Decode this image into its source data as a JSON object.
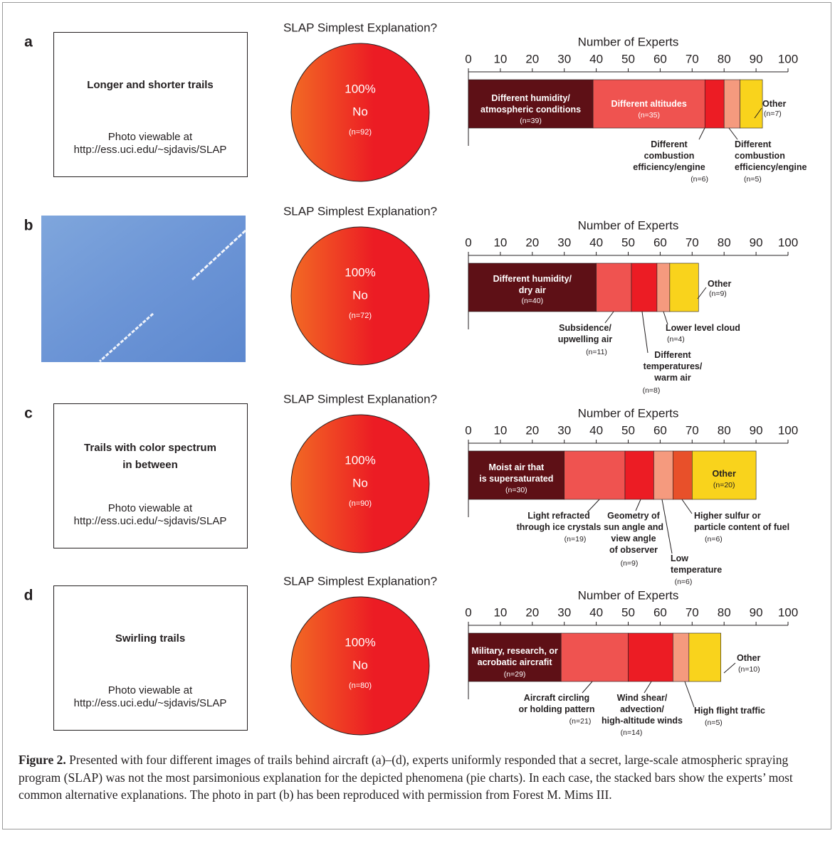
{
  "panels": [
    {
      "label": "a",
      "box": {
        "title": "Longer and shorter trails",
        "note": "Photo viewable at\nhttp://ess.uci.edu/~sjdavis/SLAP"
      }
    },
    {
      "label": "b",
      "photo": true
    },
    {
      "label": "c",
      "box": {
        "title": "Trails with color spectrum\nin between",
        "note": "Photo viewable at\nhttp://ess.uci.edu/~sjdavis/SLAP"
      }
    },
    {
      "label": "d",
      "box": {
        "title": "Swirling trails",
        "note": "Photo viewable at\nhttp://ess.uci.edu/~sjdavis/SLAP"
      }
    }
  ],
  "chart_data": [
    {
      "type": "pie",
      "title": "SLAP Simplest Explanation?",
      "categories": [
        "No"
      ],
      "values": [
        100
      ],
      "value_labels": [
        "100%"
      ],
      "counts": [
        92
      ],
      "count_labels": [
        "(n=92)"
      ],
      "color": "#ec1c24"
    },
    {
      "type": "bar",
      "orientation": "horizontal",
      "stacked": true,
      "xlabel": "Number of Experts",
      "xlim": [
        0,
        100
      ],
      "xticks": [
        0,
        10,
        20,
        30,
        40,
        50,
        60,
        70,
        80,
        90,
        100
      ],
      "series": [
        {
          "name": "Different humidity/\natmospheric conditions",
          "color": "#5e1016",
          "values": [
            39
          ],
          "value_labels": [
            "(n=39)"
          ]
        },
        {
          "name": "Different altitudes",
          "color": "#ef5350",
          "values": [
            35
          ],
          "value_labels": [
            "(n=35)"
          ]
        },
        {
          "name": "Different\ncombustion\nefficiency/engine",
          "color": "#ec1c24",
          "values": [
            6
          ],
          "value_labels": [
            "(n=6)"
          ]
        },
        {
          "name": "Different\ncombustion\nefficiency/engine",
          "color": "#f59a7e",
          "values": [
            5
          ],
          "value_labels": [
            "(n=5)"
          ]
        },
        {
          "name": "Other",
          "color": "#f9d31c",
          "values": [
            7
          ],
          "value_labels": [
            "(n=7)"
          ]
        }
      ]
    },
    {
      "type": "pie",
      "title": "SLAP Simplest Explanation?",
      "categories": [
        "No"
      ],
      "values": [
        100
      ],
      "value_labels": [
        "100%"
      ],
      "counts": [
        72
      ],
      "count_labels": [
        "(n=72)"
      ],
      "color": "#ec1c24"
    },
    {
      "type": "bar",
      "orientation": "horizontal",
      "stacked": true,
      "xlabel": "Number of Experts",
      "xlim": [
        0,
        100
      ],
      "xticks": [
        0,
        10,
        20,
        30,
        40,
        50,
        60,
        70,
        80,
        90,
        100
      ],
      "series": [
        {
          "name": "Different humidity/\ndry air",
          "color": "#5e1016",
          "values": [
            40
          ],
          "value_labels": [
            "(n=40)"
          ]
        },
        {
          "name": "Subsidence/\nupwelling air",
          "color": "#ef5350",
          "values": [
            11
          ],
          "value_labels": [
            "(n=11)"
          ]
        },
        {
          "name": "Different\ntemperatures/\nwarm air",
          "color": "#ec1c24",
          "values": [
            8
          ],
          "value_labels": [
            "(n=8)"
          ]
        },
        {
          "name": "Lower level cloud",
          "color": "#f59a7e",
          "values": [
            4
          ],
          "value_labels": [
            "(n=4)"
          ]
        },
        {
          "name": "Other",
          "color": "#f9d31c",
          "values": [
            9
          ],
          "value_labels": [
            "(n=9)"
          ]
        }
      ]
    },
    {
      "type": "pie",
      "title": "SLAP Simplest Explanation?",
      "categories": [
        "No"
      ],
      "values": [
        100
      ],
      "value_labels": [
        "100%"
      ],
      "counts": [
        90
      ],
      "count_labels": [
        "(n=90)"
      ],
      "color": "#ec1c24"
    },
    {
      "type": "bar",
      "orientation": "horizontal",
      "stacked": true,
      "xlabel": "Number of Experts",
      "xlim": [
        0,
        100
      ],
      "xticks": [
        0,
        10,
        20,
        30,
        40,
        50,
        60,
        70,
        80,
        90,
        100
      ],
      "series": [
        {
          "name": "Moist air that\nis supersaturated",
          "color": "#5e1016",
          "values": [
            30
          ],
          "value_labels": [
            "(n=30)"
          ]
        },
        {
          "name": "Light refracted\nthrough ice crystals",
          "color": "#ef5350",
          "values": [
            19
          ],
          "value_labels": [
            "(n=19)"
          ]
        },
        {
          "name": "Geometry of\nsun angle and\nview angle\nof observer",
          "color": "#ec1c24",
          "values": [
            9
          ],
          "value_labels": [
            "(n=9)"
          ]
        },
        {
          "name": "Low\ntemperature",
          "color": "#f59a7e",
          "values": [
            6
          ],
          "value_labels": [
            "(n=6)"
          ]
        },
        {
          "name": "Higher sulfur or\nparticle content of fuel",
          "color": "#e8502a",
          "values": [
            6
          ],
          "value_labels": [
            "(n=6)"
          ]
        },
        {
          "name": "Other",
          "color": "#f9d31c",
          "values": [
            20
          ],
          "value_labels": [
            "(n=20)"
          ]
        }
      ]
    },
    {
      "type": "pie",
      "title": "SLAP Simplest Explanation?",
      "categories": [
        "No"
      ],
      "values": [
        100
      ],
      "value_labels": [
        "100%"
      ],
      "counts": [
        80
      ],
      "count_labels": [
        "(n=80)"
      ],
      "color": "#ec1c24"
    },
    {
      "type": "bar",
      "orientation": "horizontal",
      "stacked": true,
      "xlabel": "Number of Experts",
      "xlim": [
        0,
        100
      ],
      "xticks": [
        0,
        10,
        20,
        30,
        40,
        50,
        60,
        70,
        80,
        90,
        100
      ],
      "series": [
        {
          "name": "Military, research, or\nacrobatic aircrafit",
          "color": "#5e1016",
          "values": [
            29
          ],
          "value_labels": [
            "(n=29)"
          ]
        },
        {
          "name": "Aircraft circling\nor holding pattern",
          "color": "#ef5350",
          "values": [
            21
          ],
          "value_labels": [
            "(n=21)"
          ]
        },
        {
          "name": "Wind shear/\nadvection/\nhigh-altitude winds",
          "color": "#ec1c24",
          "values": [
            14
          ],
          "value_labels": [
            "(n=14)"
          ]
        },
        {
          "name": "High flight traffic",
          "color": "#f59a7e",
          "values": [
            5
          ],
          "value_labels": [
            "(n=5)"
          ]
        },
        {
          "name": "Other",
          "color": "#f9d31c",
          "values": [
            10
          ],
          "value_labels": [
            "(n=10)"
          ]
        }
      ]
    }
  ],
  "caption": {
    "label": "Figure 2.",
    "text": "Presented with four different images of trails behind aircraft (a)–(d), experts uniformly responded that a secret, large-scale atmospheric spraying program (SLAP) was not the most parsimonious explanation for the depicted phenomena (pie charts). In each case, the stacked bars show the experts’ most common alternative explanations. The photo in part (b) has been reproduced with permission from Forest M. Mims III."
  }
}
